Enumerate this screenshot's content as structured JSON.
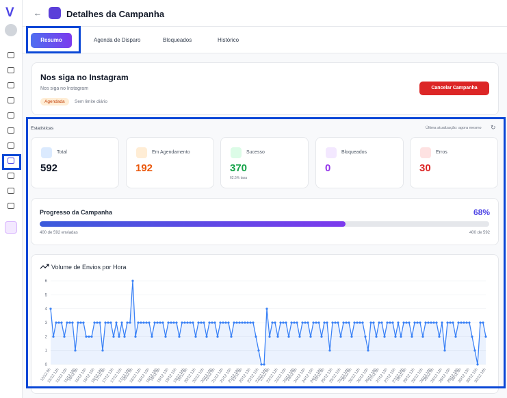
{
  "sidebar": {
    "logo": "V"
  },
  "header": {
    "title": "Detalhes da Campanha"
  },
  "tabs": [
    "Resumo",
    "Agenda de Disparo",
    "Bloqueados",
    "Histórico"
  ],
  "campaign": {
    "name": "Nos siga no Instagram",
    "description": "Nos siga no Instagram",
    "status": "Agendada",
    "limit": "Sem limite diário",
    "cancel_button": "Cancelar Campanha"
  },
  "stats": {
    "title": "Estatísticas",
    "updated": "Última atualização: agora mesmo",
    "cards": [
      {
        "label": "Total",
        "value": 592
      },
      {
        "label": "Em Agendamento",
        "value": 192
      },
      {
        "label": "Sucesso",
        "value": 370,
        "note": "62.5% taxa"
      },
      {
        "label": "Bloqueados",
        "value": 0
      },
      {
        "label": "Erros",
        "value": 30
      }
    ]
  },
  "progress": {
    "title": "Progresso da Campanha",
    "percent": {
      "value": 68,
      "label": "68%"
    },
    "sent_label": "400 de 592 enviadas",
    "count_label": "400 de 592"
  },
  "chart_data": {
    "type": "line",
    "title": "Volume de Envios por Hora",
    "color": "#3b82f6",
    "grid": true,
    "ylim": [
      0,
      6
    ],
    "yticks": [
      0,
      1,
      2,
      3,
      4,
      5,
      6
    ],
    "categories": [
      "15/12 9h",
      null,
      null,
      "15/12 12h",
      null,
      null,
      "15/12 15h",
      null,
      null,
      "15/12 18h",
      "16/12 9h",
      null,
      null,
      "16/12 12h",
      null,
      null,
      "16/12 15h",
      null,
      null,
      "16/12 18h",
      "17/12 9h",
      null,
      null,
      "17/12 12h",
      null,
      null,
      "17/12 15h",
      null,
      null,
      "17/12 18h",
      "18/12 9h",
      null,
      null,
      "18/12 12h",
      null,
      null,
      "18/12 15h",
      null,
      null,
      "18/12 18h",
      "19/12 9h",
      null,
      null,
      "19/12 12h",
      null,
      null,
      "19/12 15h",
      null,
      null,
      "19/12 18h",
      "20/12 9h",
      null,
      null,
      "20/12 12h",
      null,
      null,
      "20/12 15h",
      null,
      null,
      "20/12 18h",
      "21/12 9h",
      null,
      null,
      "21/12 12h",
      null,
      null,
      "21/12 15h",
      null,
      null,
      "21/12 18h",
      "22/12 9h",
      null,
      null,
      "22/12 12h",
      null,
      null,
      "22/12 15h",
      null,
      null,
      "22/12 18h",
      "23/12 9h",
      null,
      null,
      "23/12 12h",
      null,
      null,
      "23/12 15h",
      null,
      null,
      "23/12 18h",
      "24/12 9h",
      null,
      null,
      "24/12 12h",
      null,
      null,
      "24/12 15h",
      null,
      null,
      "24/12 18h",
      "25/12 9h",
      null,
      null,
      "25/12 12h",
      null,
      null,
      "25/12 15h",
      null,
      null,
      "25/12 18h",
      "26/12 9h",
      null,
      null,
      "26/12 12h",
      null,
      null,
      "26/12 15h",
      null,
      null,
      "26/12 18h",
      "27/12 9h",
      null,
      null,
      "27/12 12h",
      null,
      null,
      "27/12 15h",
      null,
      null,
      "27/12 18h",
      "28/12 9h",
      null,
      null,
      "28/12 12h",
      null,
      null,
      "28/12 15h",
      null,
      null,
      "28/12 18h",
      "29/12 9h",
      null,
      null,
      "29/12 12h",
      null,
      null,
      "29/12 15h",
      null,
      null,
      "29/12 18h",
      "30/12 9h",
      null,
      null,
      "30/12 12h",
      null,
      null,
      "30/12 15h",
      null,
      null,
      "30/12 18h"
    ],
    "values": [
      4,
      2,
      3,
      3,
      3,
      2,
      3,
      3,
      3,
      1,
      3,
      3,
      3,
      2,
      2,
      2,
      3,
      3,
      3,
      1,
      3,
      3,
      3,
      2,
      3,
      2,
      3,
      2,
      3,
      3,
      6,
      2,
      3,
      3,
      3,
      3,
      3,
      2,
      3,
      3,
      3,
      3,
      2,
      3,
      3,
      3,
      3,
      2,
      3,
      3,
      3,
      3,
      3,
      2,
      3,
      3,
      3,
      2,
      3,
      3,
      3,
      2,
      3,
      3,
      3,
      3,
      2,
      3,
      3,
      3,
      3,
      3,
      3,
      3,
      3,
      2,
      1,
      0,
      0,
      4,
      2,
      3,
      3,
      2,
      3,
      3,
      3,
      2,
      3,
      3,
      3,
      2,
      3,
      3,
      3,
      2,
      3,
      3,
      3,
      2,
      3,
      3,
      1,
      3,
      3,
      3,
      2,
      3,
      3,
      3,
      2,
      3,
      3,
      3,
      3,
      2,
      1,
      3,
      3,
      2,
      3,
      3,
      2,
      3,
      3,
      3,
      2,
      3,
      2,
      3,
      3,
      3,
      2,
      3,
      3,
      3,
      2,
      3,
      3,
      3,
      3,
      3,
      2,
      3,
      1,
      3,
      3,
      3,
      2,
      3,
      3,
      3,
      3,
      3,
      2,
      1,
      0,
      3,
      3,
      2
    ]
  }
}
